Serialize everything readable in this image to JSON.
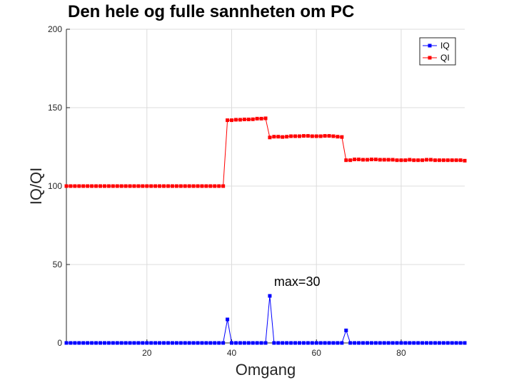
{
  "chart_data": {
    "type": "line",
    "title": "Den hele og fulle sannheten om PC",
    "xlabel": "Omgang",
    "ylabel": "IQ/QI",
    "xlim": [
      1,
      95
    ],
    "ylim": [
      0,
      200
    ],
    "xticks": [
      20,
      40,
      60,
      80
    ],
    "yticks": [
      0,
      50,
      100,
      150,
      200
    ],
    "grid": true,
    "legend_placement": "top-right",
    "annotation": {
      "text": "max=30",
      "x": 49,
      "y": 30
    },
    "series": [
      {
        "name": "IQ",
        "color": "#0000ff",
        "marker": "square",
        "x": [
          1,
          2,
          3,
          4,
          5,
          6,
          7,
          8,
          9,
          10,
          11,
          12,
          13,
          14,
          15,
          16,
          17,
          18,
          19,
          20,
          21,
          22,
          23,
          24,
          25,
          26,
          27,
          28,
          29,
          30,
          31,
          32,
          33,
          34,
          35,
          36,
          37,
          38,
          39,
          40,
          41,
          42,
          43,
          44,
          45,
          46,
          47,
          48,
          49,
          50,
          51,
          52,
          53,
          54,
          55,
          56,
          57,
          58,
          59,
          60,
          61,
          62,
          63,
          64,
          65,
          66,
          67,
          68,
          69,
          70,
          71,
          72,
          73,
          74,
          75,
          76,
          77,
          78,
          79,
          80,
          81,
          82,
          83,
          84,
          85,
          86,
          87,
          88,
          89,
          90,
          91,
          92,
          93,
          94,
          95
        ],
        "values": [
          0,
          0,
          0,
          0,
          0,
          0,
          0,
          0,
          0,
          0,
          0,
          0,
          0,
          0,
          0,
          0,
          0,
          0,
          0,
          0,
          0,
          0,
          0,
          0,
          0,
          0,
          0,
          0,
          0,
          0,
          0,
          0,
          0,
          0,
          0,
          0,
          0,
          0,
          15,
          0,
          0,
          0,
          0,
          0,
          0,
          0,
          0,
          0,
          30,
          0,
          0,
          0,
          0,
          0,
          0,
          0,
          0,
          0,
          0,
          0,
          0,
          0,
          0,
          0,
          0,
          0,
          8,
          0,
          0,
          0,
          0,
          0,
          0,
          0,
          0,
          0,
          0,
          0,
          0,
          0,
          0,
          0,
          0,
          0,
          0,
          0,
          0,
          0,
          0,
          0,
          0,
          0,
          0,
          0,
          0
        ]
      },
      {
        "name": "QI",
        "color": "#ff0000",
        "marker": "square",
        "x": [
          1,
          2,
          3,
          4,
          5,
          6,
          7,
          8,
          9,
          10,
          11,
          12,
          13,
          14,
          15,
          16,
          17,
          18,
          19,
          20,
          21,
          22,
          23,
          24,
          25,
          26,
          27,
          28,
          29,
          30,
          31,
          32,
          33,
          34,
          35,
          36,
          37,
          38,
          39,
          40,
          41,
          42,
          43,
          44,
          45,
          46,
          47,
          48,
          49,
          50,
          51,
          52,
          53,
          54,
          55,
          56,
          57,
          58,
          59,
          60,
          61,
          62,
          63,
          64,
          65,
          66,
          67,
          68,
          69,
          70,
          71,
          72,
          73,
          74,
          75,
          76,
          77,
          78,
          79,
          80,
          81,
          82,
          83,
          84,
          85,
          86,
          87,
          88,
          89,
          90,
          91,
          92,
          93,
          94,
          95
        ],
        "values": [
          100,
          100,
          100,
          100,
          100,
          100,
          100,
          100,
          100,
          100,
          100,
          100,
          100,
          100,
          100,
          100,
          100,
          100,
          100,
          100,
          100,
          100,
          100,
          100,
          100,
          100,
          100,
          100,
          100,
          100,
          100,
          100,
          100,
          100,
          100,
          100,
          100,
          100,
          142,
          142,
          142.3,
          142.3,
          142.5,
          142.5,
          142.6,
          143,
          143,
          143.2,
          131,
          131.5,
          131.5,
          131.3,
          131.5,
          131.8,
          131.8,
          131.8,
          132,
          132,
          131.8,
          131.8,
          131.8,
          132,
          132,
          131.8,
          131.5,
          131.3,
          116.5,
          116.5,
          117,
          117,
          116.8,
          116.8,
          117,
          117,
          116.8,
          116.8,
          116.8,
          116.8,
          116.5,
          116.5,
          116.5,
          116.8,
          116.5,
          116.5,
          116.5,
          116.8,
          116.8,
          116.5,
          116.5,
          116.5,
          116.5,
          116.5,
          116.5,
          116.5,
          116.2
        ]
      }
    ]
  }
}
